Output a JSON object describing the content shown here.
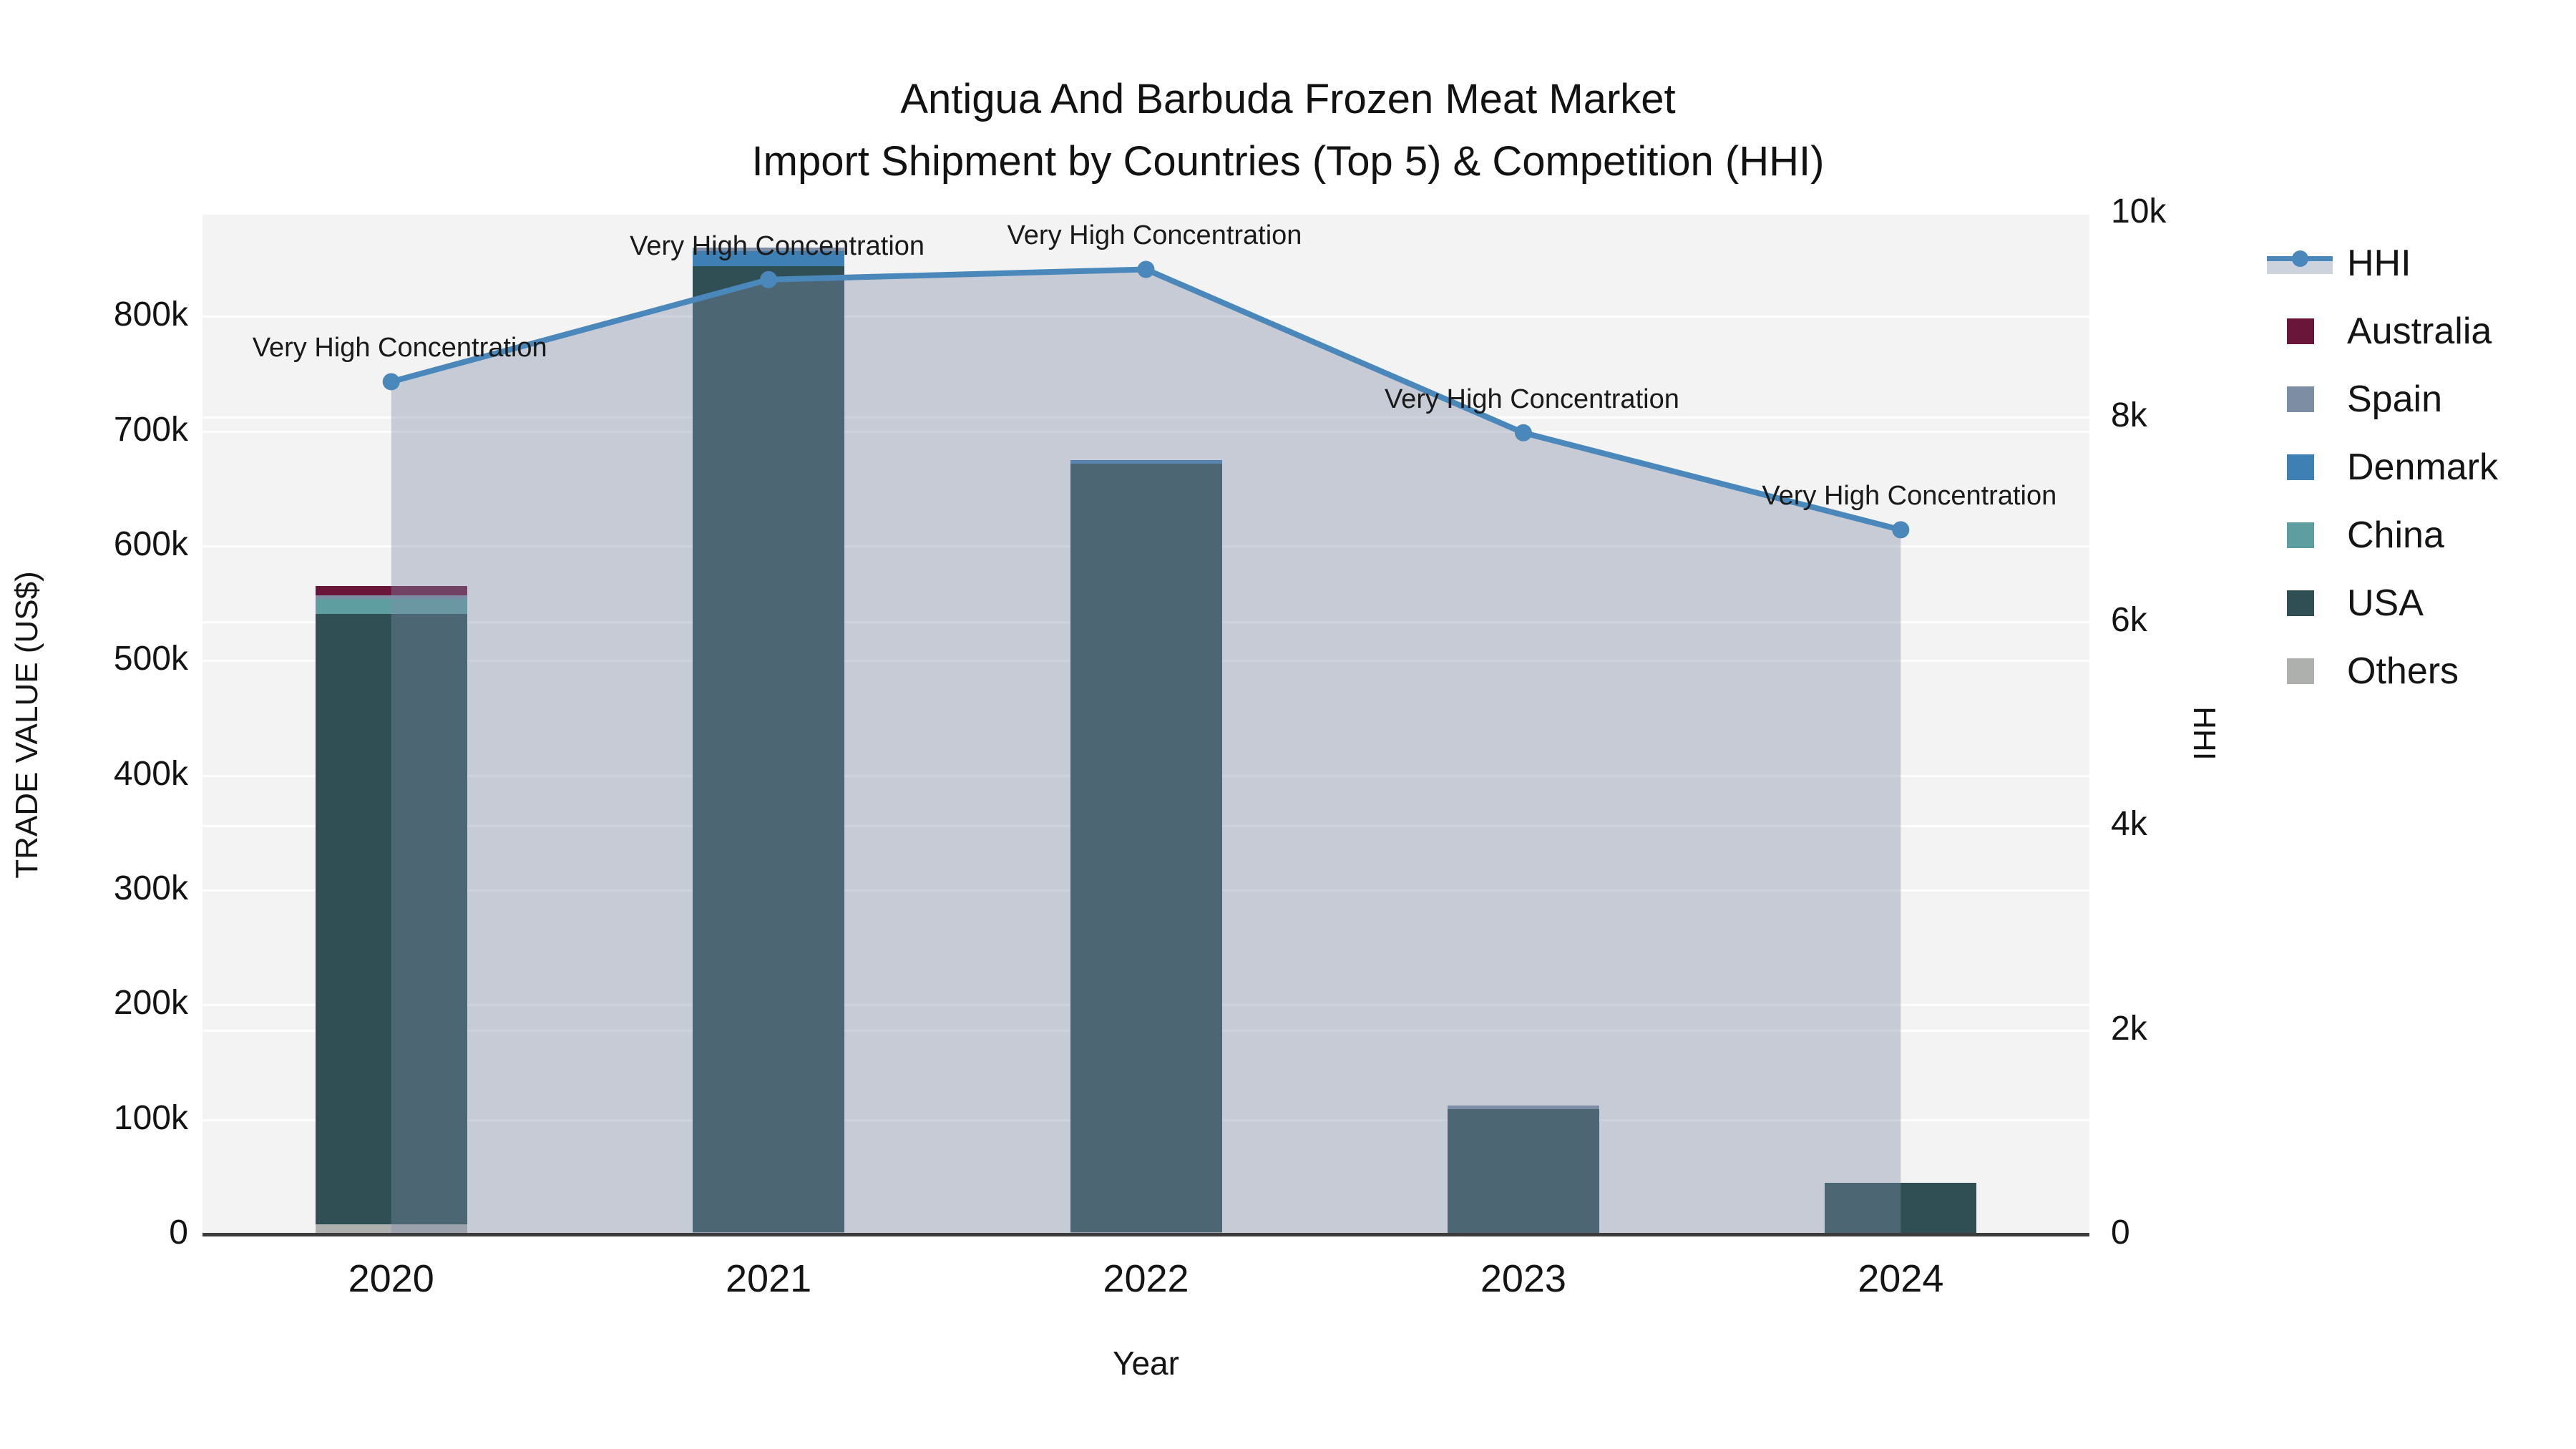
{
  "chart_data": {
    "type": "bar+line",
    "title_line1": "Antigua And Barbuda Frozen Meat Market",
    "title_line2": "Import Shipment by Countries (Top 5) & Competition (HHI)",
    "categories": [
      "2020",
      "2021",
      "2022",
      "2023",
      "2024"
    ],
    "xlabel": "Year",
    "y_left": {
      "label": "TRADE VALUE (US$)",
      "ticks": [
        "0",
        "100k",
        "200k",
        "300k",
        "400k",
        "500k",
        "600k",
        "700k",
        "800k"
      ],
      "tick_values": [
        0,
        100000,
        200000,
        300000,
        400000,
        500000,
        600000,
        700000,
        800000
      ],
      "range": [
        0,
        890000
      ]
    },
    "y_right": {
      "label": "HHI",
      "ticks": [
        "0",
        "2k",
        "4k",
        "6k",
        "8k",
        "10k"
      ],
      "tick_values": [
        0,
        2000,
        4000,
        6000,
        8000,
        10000
      ],
      "range": [
        0,
        10000
      ]
    },
    "series": [
      {
        "name": "Australia",
        "color": "#69163a",
        "values": [
          8000,
          0,
          0,
          0,
          0
        ]
      },
      {
        "name": "Spain",
        "color": "#7d8da3",
        "values": [
          3000,
          3000,
          0,
          3000,
          0
        ]
      },
      {
        "name": "Denmark",
        "color": "#3f80b4",
        "values": [
          0,
          13000,
          3000,
          0,
          0
        ]
      },
      {
        "name": "China",
        "color": "#5f9ea0",
        "values": [
          13000,
          0,
          0,
          0,
          0
        ]
      },
      {
        "name": "USA",
        "color": "#2f4f54",
        "values": [
          532000,
          842000,
          670000,
          109000,
          45000
        ]
      },
      {
        "name": "Others",
        "color": "#adb0ad",
        "values": [
          9000,
          2000,
          2000,
          0,
          0
        ]
      }
    ],
    "stacking": "bars stacked bottom-to-top: Others, USA, China, Denmark, Spain, Australia",
    "bar_totals": [
      565000,
      860000,
      675000,
      112000,
      45000
    ],
    "hhi_line": {
      "name": "HHI",
      "color": "#4a87ba",
      "area_color": "#7e8ca8",
      "values": [
        8350,
        9350,
        9450,
        7850,
        6900
      ]
    },
    "annotations": [
      {
        "year": "2020",
        "text": "Very High Concentration"
      },
      {
        "year": "2021",
        "text": "Very High Concentration"
      },
      {
        "year": "2022",
        "text": "Very High Concentration"
      },
      {
        "year": "2023",
        "text": "Very High Concentration"
      },
      {
        "year": "2024",
        "text": "Very High Concentration"
      }
    ],
    "legend_position": "right",
    "grid": true,
    "plot_background": "#f2f3f2"
  }
}
